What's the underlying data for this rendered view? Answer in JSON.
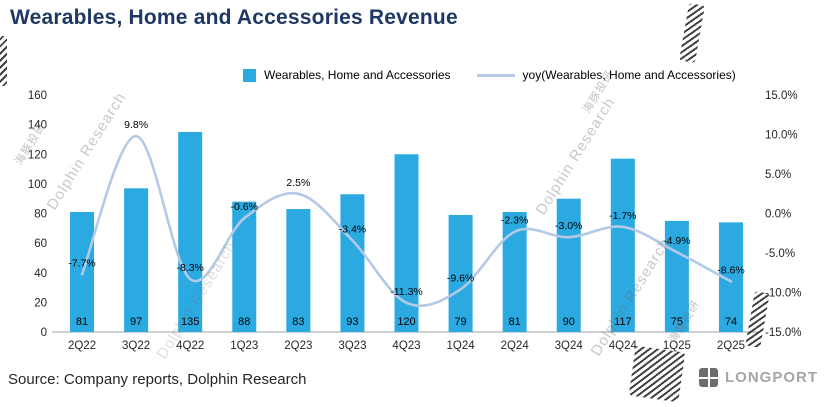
{
  "title": "Wearables, Home and Accessories Revenue",
  "source": "Source: Company reports, Dolphin Research",
  "branding": {
    "longport": "LONGPORT"
  },
  "watermarks": {
    "en": "Dolphin Research",
    "zh": "海豚投研"
  },
  "legend": {
    "bars": "Wearables, Home and Accessories",
    "line": "yoy(Wearables, Home and Accessories)"
  },
  "colors": {
    "bar": "#2BAAE2",
    "line": "#B3C9E6",
    "title": "#1F3864",
    "axis_text": "#262626"
  },
  "chart_data": {
    "type": "bar",
    "categories": [
      "2Q22",
      "3Q22",
      "4Q22",
      "1Q23",
      "2Q23",
      "3Q23",
      "4Q23",
      "1Q24",
      "2Q24",
      "3Q24",
      "4Q24",
      "1Q25",
      "2Q25"
    ],
    "series": [
      {
        "name": "Wearables, Home and Accessories",
        "type": "bar",
        "axis": "left",
        "values": [
          81,
          97,
          135,
          88,
          83,
          93,
          120,
          79,
          81,
          90,
          117,
          75,
          74
        ]
      },
      {
        "name": "yoy(Wearables, Home and Accessories)",
        "type": "line",
        "axis": "right",
        "values_pct": [
          -7.7,
          9.8,
          -8.3,
          -0.6,
          2.5,
          -3.4,
          -11.3,
          -9.6,
          -2.3,
          -3.0,
          -1.7,
          -4.9,
          -8.6
        ],
        "labels": [
          "-7.7%",
          "9.8%",
          "-8.3%",
          "-0.6%",
          "2.5%",
          "-3.4%",
          "-11.3%",
          "-9.6%",
          "-2.3%",
          "-3.0%",
          "-1.7%",
          "-4.9%",
          "-8.6%"
        ]
      }
    ],
    "left_axis": {
      "min": 0,
      "max": 160,
      "ticks": [
        "0",
        "20",
        "40",
        "60",
        "80",
        "100",
        "120",
        "140",
        "160"
      ]
    },
    "right_axis": {
      "min": -15,
      "max": 15,
      "ticks": [
        "-15.0%",
        "-10.0%",
        "-5.0%",
        "0.0%",
        "5.0%",
        "10.0%",
        "15.0%"
      ]
    },
    "grid": false,
    "legend_position": "top"
  }
}
